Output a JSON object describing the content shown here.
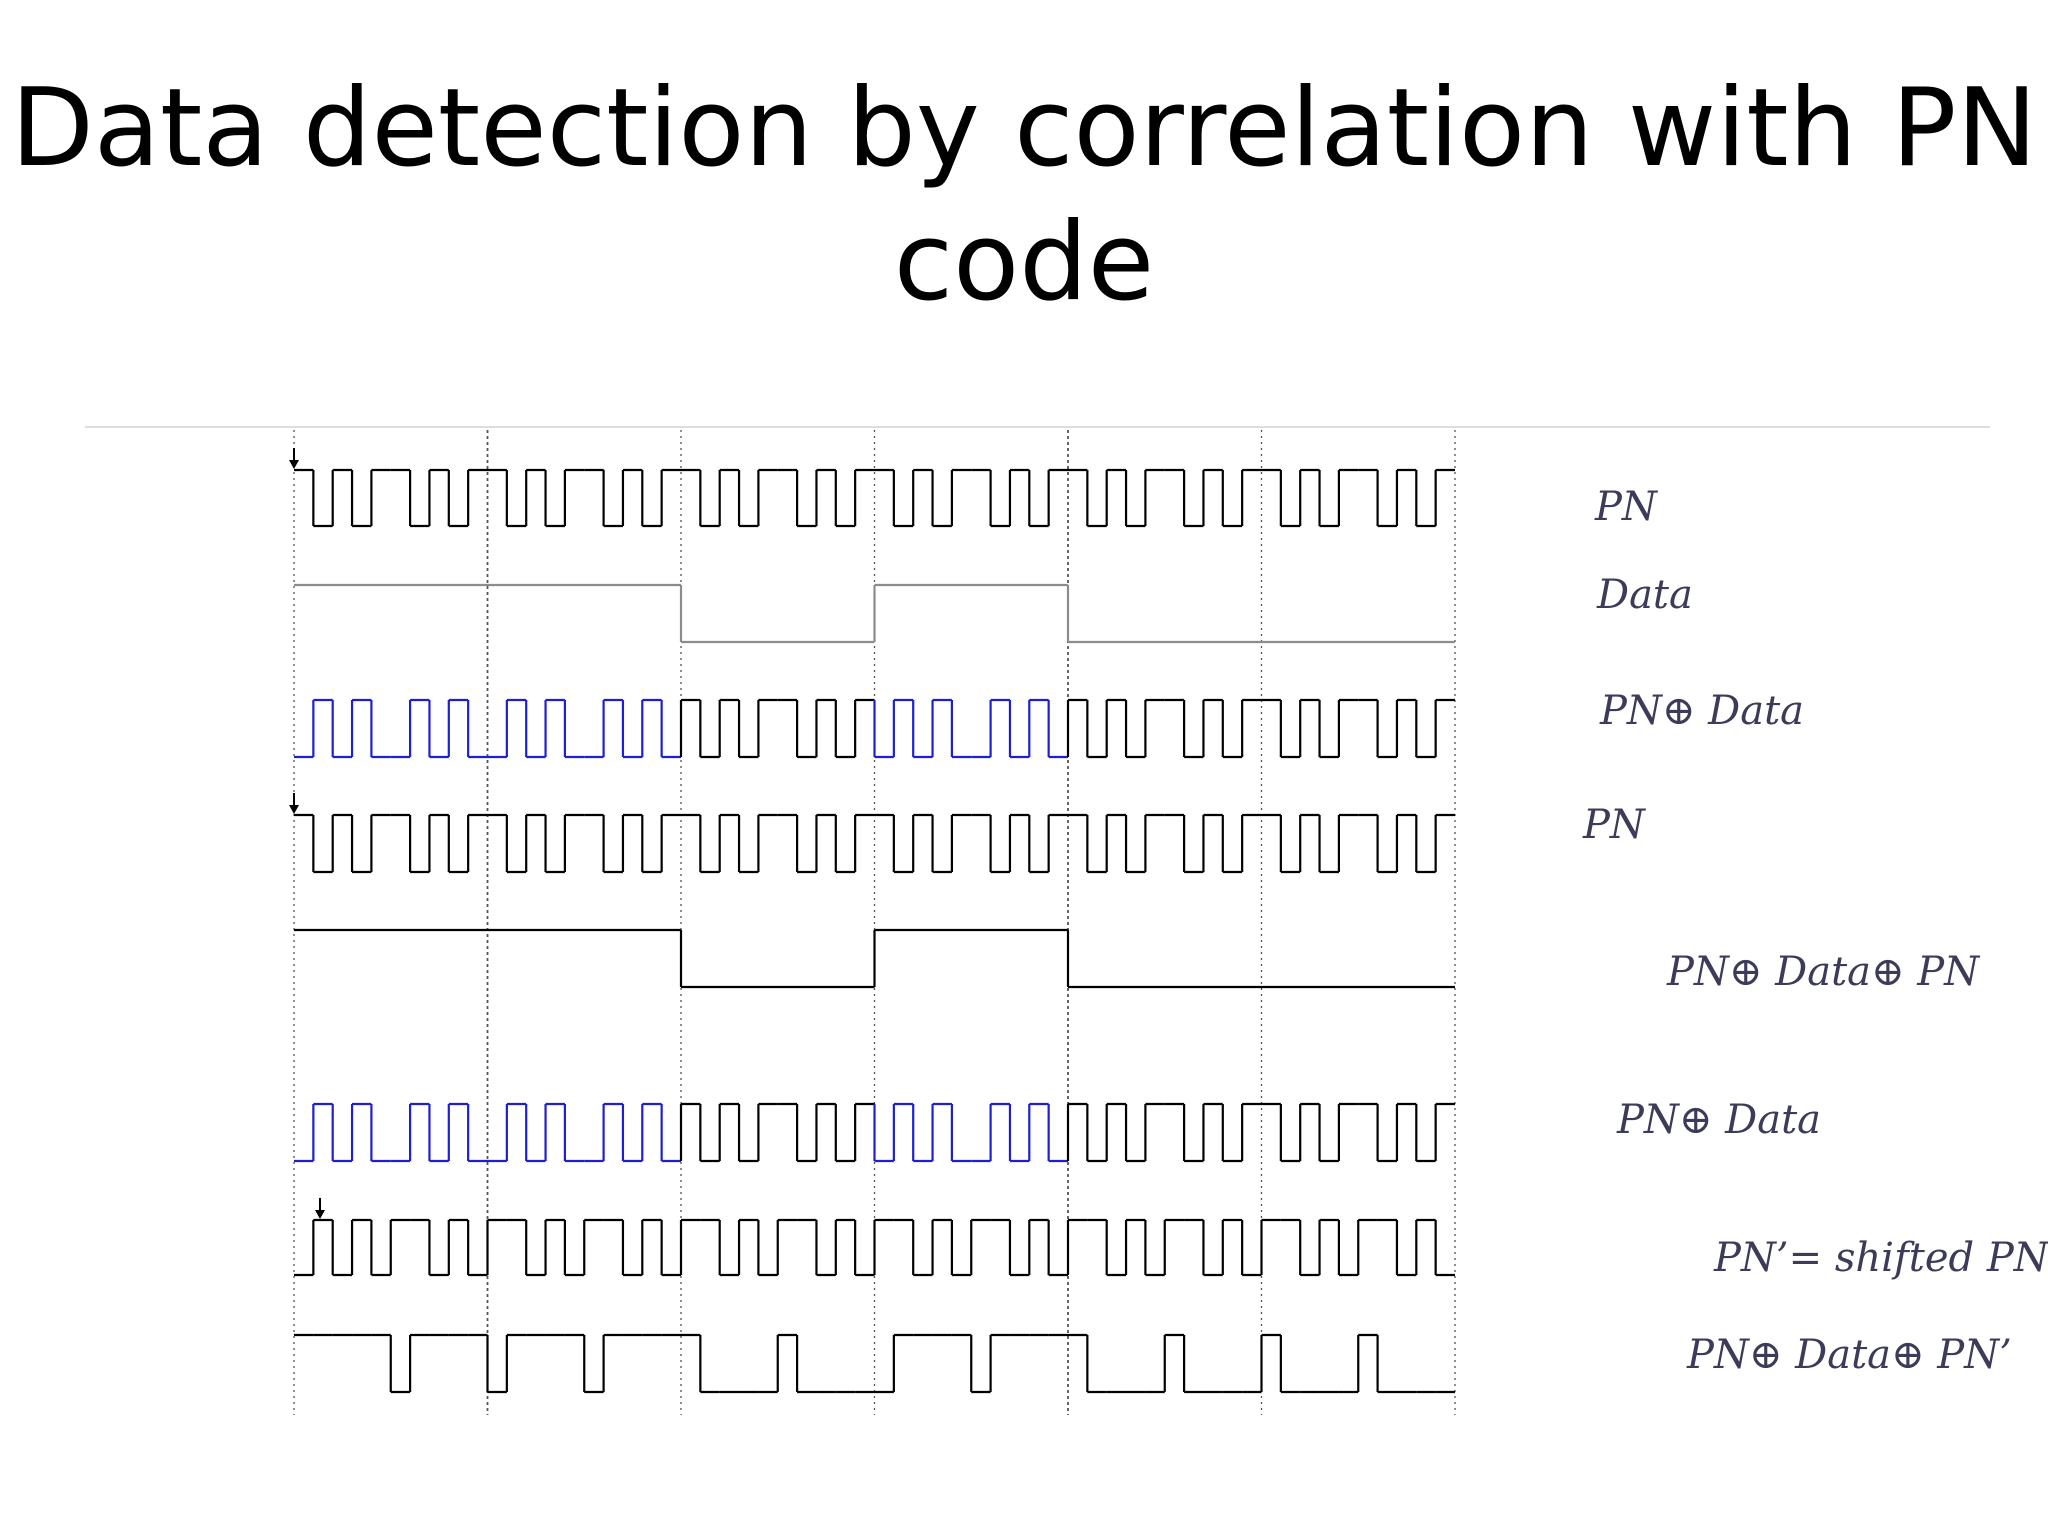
{
  "slide": {
    "title": "Data detection by correlation with PN code"
  },
  "colors": {
    "black": "#000000",
    "blue": "#1f1fd0",
    "gray": "#8c8c8c",
    "grid": "#555555",
    "label": "#3c3c5a",
    "rule": "#dddddd"
  },
  "diagram": {
    "signals": [
      {
        "label": "PN",
        "bits": [
          1,
          0,
          1,
          0,
          1,
          1,
          0,
          1,
          0,
          1,
          1,
          0,
          1,
          0,
          1,
          1,
          0,
          1,
          0,
          1,
          1,
          0,
          1,
          0,
          1,
          1,
          0,
          1,
          0,
          1,
          1,
          0,
          1,
          0,
          1,
          1,
          0,
          1,
          0,
          1,
          1,
          0,
          1,
          0,
          1,
          1,
          0,
          1,
          0,
          1,
          1,
          0,
          1,
          0,
          1,
          1,
          0,
          1,
          0,
          1
        ],
        "marker": true
      },
      {
        "label": "Data",
        "bits": [
          1,
          1,
          0,
          1,
          0,
          0
        ],
        "style": "data"
      },
      {
        "label": "PN⊕ Data",
        "bits": [
          0,
          1,
          0,
          1,
          0,
          0,
          1,
          0,
          1,
          0,
          0,
          1,
          0,
          1,
          0,
          0,
          1,
          0,
          1,
          0,
          1,
          0,
          1,
          0,
          1,
          1,
          0,
          1,
          0,
          1,
          0,
          1,
          0,
          1,
          0,
          0,
          1,
          0,
          1,
          0,
          1,
          0,
          1,
          0,
          1,
          1,
          0,
          1,
          0,
          1,
          1,
          0,
          1,
          0,
          1,
          1,
          0,
          1,
          0,
          1
        ],
        "style": "mixed"
      },
      {
        "label": "PN",
        "bits": [
          1,
          0,
          1,
          0,
          1,
          1,
          0,
          1,
          0,
          1,
          1,
          0,
          1,
          0,
          1,
          1,
          0,
          1,
          0,
          1,
          1,
          0,
          1,
          0,
          1,
          1,
          0,
          1,
          0,
          1,
          1,
          0,
          1,
          0,
          1,
          1,
          0,
          1,
          0,
          1,
          1,
          0,
          1,
          0,
          1,
          1,
          0,
          1,
          0,
          1,
          1,
          0,
          1,
          0,
          1,
          1,
          0,
          1,
          0,
          1
        ],
        "marker": true
      },
      {
        "label": "PN⊕ Data⊕ PN",
        "bits": [
          1,
          1,
          0,
          1,
          0,
          0
        ],
        "style": "data-black"
      },
      {
        "label": "PN⊕ Data",
        "bits": [
          0,
          1,
          0,
          1,
          0,
          0,
          1,
          0,
          1,
          0,
          0,
          1,
          0,
          1,
          0,
          0,
          1,
          0,
          1,
          0,
          1,
          0,
          1,
          0,
          1,
          1,
          0,
          1,
          0,
          1,
          0,
          1,
          0,
          1,
          0,
          0,
          1,
          0,
          1,
          0,
          1,
          0,
          1,
          0,
          1,
          1,
          0,
          1,
          0,
          1,
          1,
          0,
          1,
          0,
          1,
          1,
          0,
          1,
          0,
          1
        ],
        "style": "mixed"
      },
      {
        "label": "PN’= shifted PN",
        "marker": true,
        "style": "shifted"
      },
      {
        "label": "PN⊕ Data⊕ PN’",
        "style": "shifted-result"
      }
    ]
  }
}
